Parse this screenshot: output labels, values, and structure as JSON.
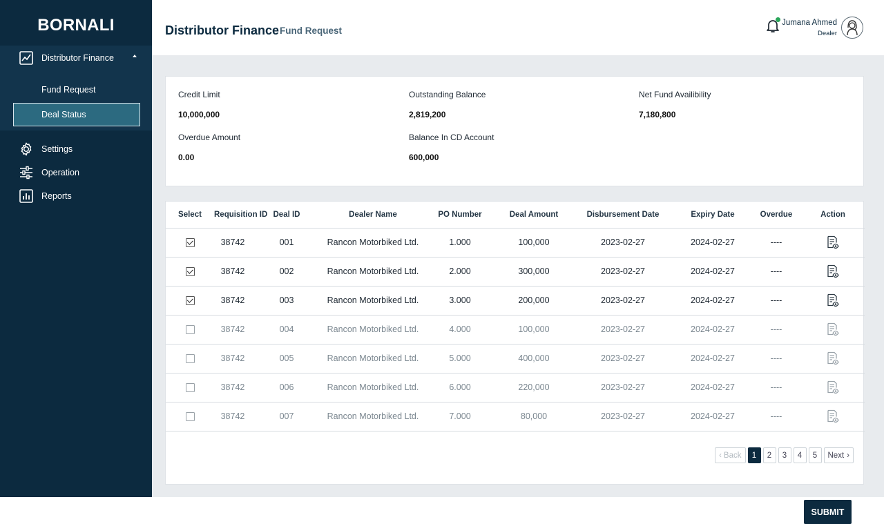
{
  "brand": "BORNALI",
  "sidebar": {
    "parent": {
      "label": "Distributor Finance",
      "icon": "trend-chart-icon"
    },
    "sub_items": [
      {
        "label": "Fund Request",
        "active": false
      },
      {
        "label": "Deal Status",
        "active": true
      }
    ],
    "items": [
      {
        "label": "Settings",
        "icon": "gear-icon"
      },
      {
        "label": "Operation",
        "icon": "sliders-icon"
      },
      {
        "label": "Reports",
        "icon": "bar-chart-icon"
      }
    ]
  },
  "header": {
    "title": "Distributor Finance",
    "subtitle": "Fund Request",
    "user_name": "Jumana Ahmed",
    "user_role": "Dealer"
  },
  "summary": {
    "credit_limit": {
      "label": "Credit Limit",
      "value": "10,000,000"
    },
    "outstanding_balance": {
      "label": "Outstanding Balance",
      "value": "2,819,200"
    },
    "net_fund": {
      "label": "Net Fund Availibility",
      "value": "7,180,800"
    },
    "overdue_amount": {
      "label": "Overdue Amount",
      "value": "0.00"
    },
    "cd_balance": {
      "label": "Balance In CD Account",
      "value": "600,000"
    }
  },
  "table": {
    "columns": [
      "Select",
      "Requisition ID",
      "Deal ID",
      "Dealer Name",
      "PO Number",
      "Deal Amount",
      "Disbursement Date",
      "Expiry Date",
      "Overdue",
      "Action"
    ],
    "rows": [
      {
        "selected": true,
        "requisition_id": "38742",
        "deal_id": "001",
        "dealer_name": "Rancon Motorbiked Ltd.",
        "po_number": "1.000",
        "deal_amount": "100,000",
        "disbursement_date": "2023-02-27",
        "expiry_date": "2024-02-27",
        "overdue": "----"
      },
      {
        "selected": true,
        "requisition_id": "38742",
        "deal_id": "002",
        "dealer_name": "Rancon Motorbiked Ltd.",
        "po_number": "2.000",
        "deal_amount": "300,000",
        "disbursement_date": "2023-02-27",
        "expiry_date": "2024-02-27",
        "overdue": "----"
      },
      {
        "selected": true,
        "requisition_id": "38742",
        "deal_id": "003",
        "dealer_name": "Rancon Motorbiked Ltd.",
        "po_number": "3.000",
        "deal_amount": "200,000",
        "disbursement_date": "2023-02-27",
        "expiry_date": "2024-02-27",
        "overdue": "----"
      },
      {
        "selected": false,
        "requisition_id": "38742",
        "deal_id": "004",
        "dealer_name": "Rancon Motorbiked Ltd.",
        "po_number": "4.000",
        "deal_amount": "100,000",
        "disbursement_date": "2023-02-27",
        "expiry_date": "2024-02-27",
        "overdue": "----"
      },
      {
        "selected": false,
        "requisition_id": "38742",
        "deal_id": "005",
        "dealer_name": "Rancon Motorbiked Ltd.",
        "po_number": "5.000",
        "deal_amount": "400,000",
        "disbursement_date": "2023-02-27",
        "expiry_date": "2024-02-27",
        "overdue": "----"
      },
      {
        "selected": false,
        "requisition_id": "38742",
        "deal_id": "006",
        "dealer_name": "Rancon Motorbiked Ltd.",
        "po_number": "6.000",
        "deal_amount": "220,000",
        "disbursement_date": "2023-02-27",
        "expiry_date": "2024-02-27",
        "overdue": "----"
      },
      {
        "selected": false,
        "requisition_id": "38742",
        "deal_id": "007",
        "dealer_name": "Rancon Motorbiked Ltd.",
        "po_number": "7.000",
        "deal_amount": "80,000",
        "disbursement_date": "2023-02-27",
        "expiry_date": "2024-02-27",
        "overdue": "----"
      }
    ]
  },
  "pagination": {
    "back_label": "Back",
    "next_label": "Next",
    "pages": [
      "1",
      "2",
      "3",
      "4",
      "5"
    ],
    "current": "1"
  },
  "submit_label": "SUBMIT",
  "colors": {
    "sidebar": "#0c2a3f",
    "active_item": "#2c6a80",
    "accent": "#0c2a3f",
    "notification": "#2aa65a"
  }
}
